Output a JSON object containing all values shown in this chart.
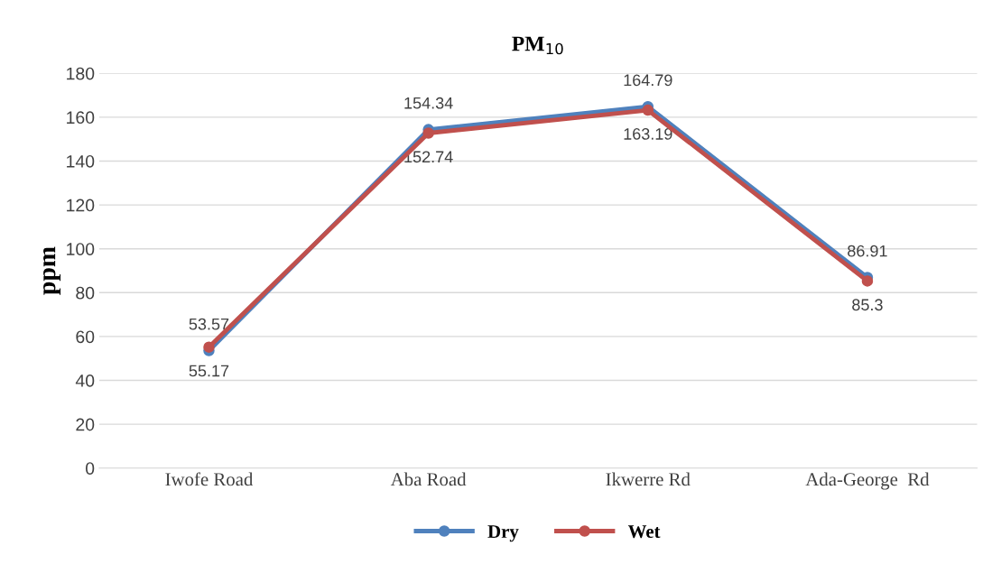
{
  "chart_data": {
    "type": "line",
    "title": "PM$_{10}$",
    "ylabel": "ppm",
    "categories": [
      "Iwofe Road",
      "Aba Road",
      "Ikwerre Rd",
      "Ada-George  Rd"
    ],
    "series": [
      {
        "name": "Dry",
        "color": "#4f81bd",
        "values": [
          53.57,
          154.34,
          164.79,
          86.91
        ]
      },
      {
        "name": "Wet",
        "color": "#c0504d",
        "values": [
          55.17,
          152.74,
          163.19,
          85.3
        ]
      }
    ],
    "ylim": [
      0,
      180
    ],
    "yticks": [
      0,
      20,
      40,
      60,
      80,
      100,
      120,
      140,
      160,
      180
    ],
    "grid": "y",
    "legend": "bottom",
    "marker": "circle",
    "line_style": "solid",
    "data_labels": true
  }
}
